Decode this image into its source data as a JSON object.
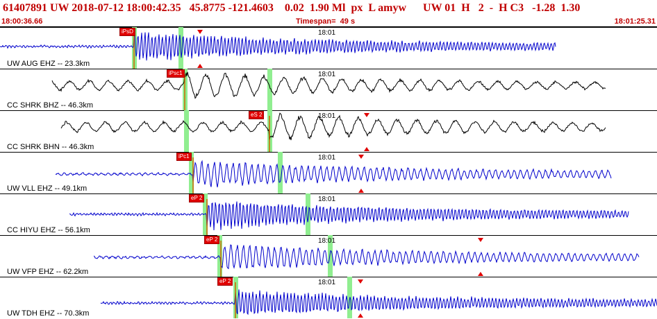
{
  "header": {
    "title": "61407891 UW 2018-07-12 18:00:42.35   45.8775 -121.4603    0.02  1.90 Ml  px  L amyw      UW 01  H   2  -  H C3   -1.28  1.30",
    "start_time": "18:00:36.66",
    "timespan": "Timespan=  49 s",
    "end_time": "18:01:25.31"
  },
  "colors": {
    "header_text": "#c00000",
    "trace": "#0000cc",
    "trace_long": "#000000",
    "pick_flag": "#e00000",
    "window": "#90ee90"
  },
  "panels": [
    {
      "label": "UW AUG EHZ -- 23.3km",
      "time_label": "18:01",
      "pick": "iPsD",
      "trace_color": "#0000cc",
      "amplitude": 0.9,
      "period": "short"
    },
    {
      "label": "CC SHRK BHZ -- 46.3km",
      "time_label": "18:01",
      "pick": "iPsc1",
      "trace_color": "#000000",
      "amplitude": 0.8,
      "period": "long"
    },
    {
      "label": "CC SHRK BHN -- 46.3km",
      "time_label": "18:01",
      "pick": "eS 2",
      "trace_color": "#000000",
      "amplitude": 0.8,
      "period": "long"
    },
    {
      "label": "UW VLL EHZ -- 49.1km",
      "time_label": "18:01",
      "pick": "iPc1",
      "trace_color": "#0000cc",
      "amplitude": 0.8,
      "period": "medium"
    },
    {
      "label": "CC HIYU EHZ -- 56.1km",
      "time_label": "18:01",
      "pick": "eP 2",
      "trace_color": "#0000cc",
      "amplitude": 0.9,
      "period": "short"
    },
    {
      "label": "UW VFP EHZ -- 62.2km",
      "time_label": "18:01",
      "pick": "eP 2",
      "trace_color": "#0000cc",
      "amplitude": 0.8,
      "period": "medium"
    },
    {
      "label": "UW TDH EHZ -- 70.3km",
      "time_label": "18:01",
      "pick": "eP 2",
      "trace_color": "#0000cc",
      "amplitude": 0.8,
      "period": "short"
    }
  ]
}
